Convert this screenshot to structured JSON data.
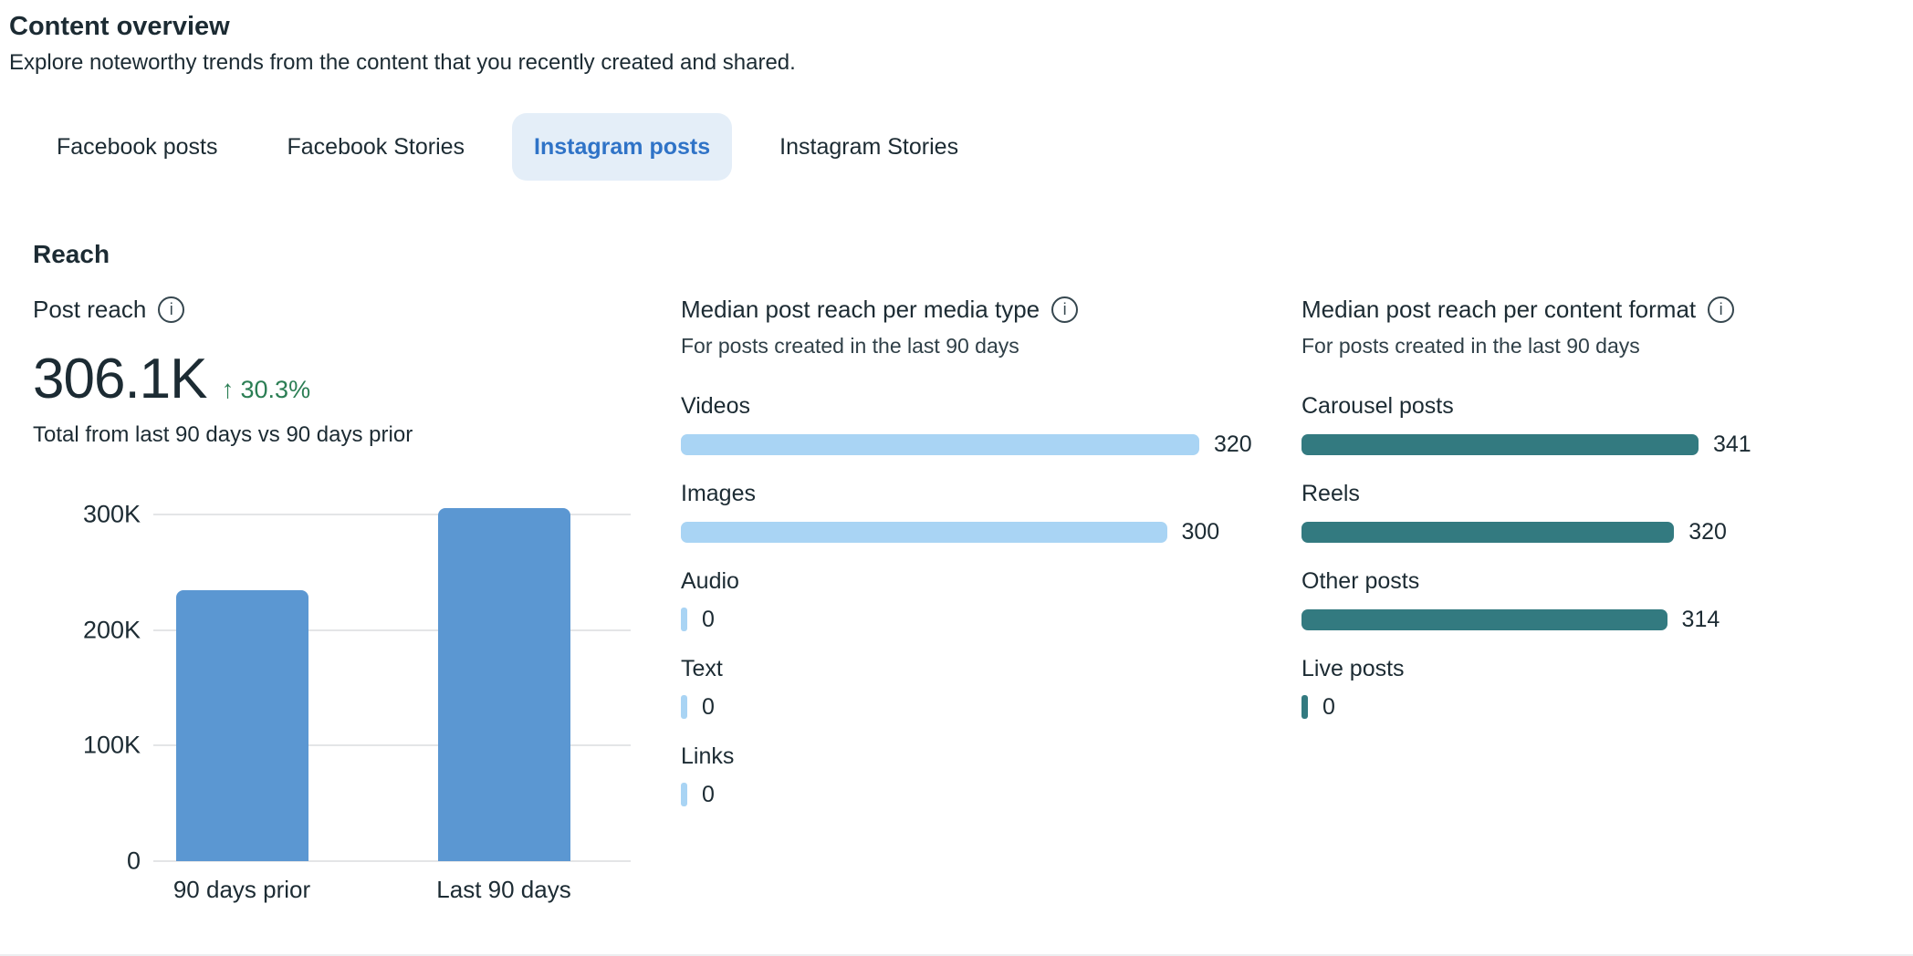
{
  "page": {
    "title": "Content overview",
    "subtitle": "Explore noteworthy trends from the content that you recently created and shared."
  },
  "tabs": [
    {
      "label": "Facebook posts",
      "active": false
    },
    {
      "label": "Facebook Stories",
      "active": false
    },
    {
      "label": "Instagram posts",
      "active": true
    },
    {
      "label": "Instagram Stories",
      "active": false
    }
  ],
  "reach_section": {
    "title": "Reach"
  },
  "post_reach": {
    "title": "Post reach",
    "value": "306.1K",
    "delta_arrow": "↑",
    "delta": "30.3%",
    "caption": "Total from last 90 days vs 90 days prior"
  },
  "icons": {
    "info": "i"
  },
  "colors": {
    "text": "#1c2b33",
    "chart_blue": "#5b97d2",
    "light_blue": "#a9d4f4",
    "teal": "#337a80",
    "positive_green": "#2b7e54",
    "active_tab_bg": "#e4eef8",
    "active_tab_text": "#2f73c7",
    "gridline": "#e4e5e7"
  },
  "chart_data": [
    {
      "type": "bar",
      "title": "Post reach",
      "categories": [
        "90 days prior",
        "Last 90 days"
      ],
      "values": [
        235000,
        306100
      ],
      "yticks": [
        {
          "label": "0",
          "value": 0
        },
        {
          "label": "100K",
          "value": 100000
        },
        {
          "label": "200K",
          "value": 200000
        },
        {
          "label": "300K",
          "value": 300000
        }
      ],
      "ylim": [
        0,
        316000
      ],
      "grid": true,
      "legend": false,
      "bar_color": "#5b97d2"
    },
    {
      "type": "bar",
      "orientation": "horizontal",
      "title": "Median post reach per media type",
      "subtitle": "For posts created in the last 90 days",
      "categories": [
        "Videos",
        "Images",
        "Audio",
        "Text",
        "Links"
      ],
      "values": [
        320,
        300,
        0,
        0,
        0
      ],
      "xlim": [
        0,
        320
      ],
      "grid": false,
      "legend": false,
      "bar_color": "#a9d4f4"
    },
    {
      "type": "bar",
      "orientation": "horizontal",
      "title": "Median post reach per content format",
      "subtitle": "For posts created in the last 90 days",
      "categories": [
        "Carousel posts",
        "Reels",
        "Other posts",
        "Live posts"
      ],
      "values": [
        341,
        320,
        314,
        0
      ],
      "xlim": [
        0,
        341
      ],
      "grid": false,
      "legend": false,
      "bar_color": "#337a80"
    }
  ]
}
